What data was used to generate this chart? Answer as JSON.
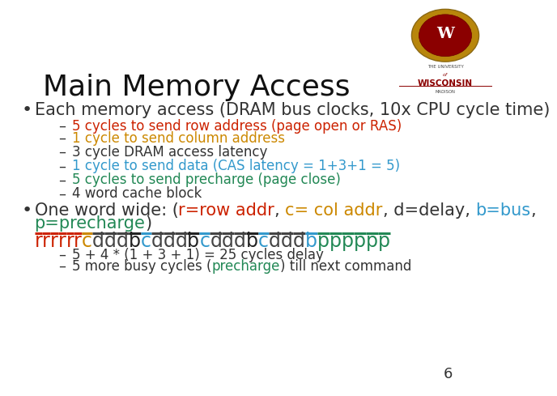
{
  "title": "Main Memory Access",
  "title_fontsize": 26,
  "bg_color": "#ffffff",
  "bullet1": "Each memory access (DRAM bus clocks, 10x CPU cycle time)",
  "bullet1_fontsize": 15,
  "sub1_text": "5 cycles to send row address (page open or RAS)",
  "sub1_color": "#cc2200",
  "sub2_text": "1 cycle to send column address",
  "sub2_color": "#cc8800",
  "sub3_text": "3 cycle DRAM access latency",
  "sub3_color": "#333333",
  "sub4_text": "1 cycle to send data (CAS latency = 1+3+1 = 5)",
  "sub4_color": "#3399cc",
  "sub5_text": "5 cycles to send precharge (page close)",
  "sub5_color": "#228855",
  "sub6_text": "4 word cache block",
  "sub6_color": "#333333",
  "bullet2_fontsize": 15,
  "page_num": "6",
  "dash_color": "#333333",
  "bullet_color": "#333333",
  "line2_mid": "precharge",
  "line2_mid_color": "#228855",
  "seq_r_color": "#cc2200",
  "seq_c_color": "#cc8800",
  "seq_d_color": "#444444",
  "seq_b_color": "#222222",
  "seq_bc_color": "#3399cc",
  "seq_p_color": "#228855"
}
